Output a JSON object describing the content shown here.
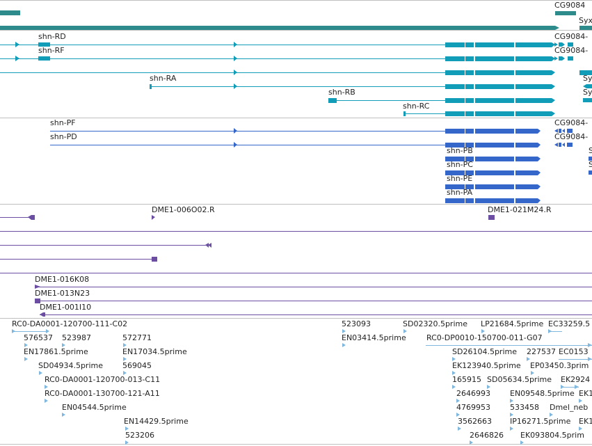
{
  "colors": {
    "gene": "#2e8b8b",
    "mrna": "#119cb8",
    "protein": "#3566c9",
    "oligo": "#6b4ea2",
    "est": "#7fb7de",
    "divider": "#bfbfbf"
  },
  "genes": {
    "cg9084_top": "CG9084",
    "syx_top": "Syx"
  },
  "mrna": {
    "shn_rd": "shn-RD",
    "shn_rf": "shn-RF",
    "shn_ra": "shn-RA",
    "shn_rb": "shn-RB",
    "shn_rc": "shn-RC",
    "cg9084_1": "CG9084-",
    "cg9084_2": "CG9084-",
    "syx_1": "Sy",
    "syx_2": "Sy"
  },
  "proteins": {
    "shn_pf": "shn-PF",
    "shn_pd": "shn-PD",
    "shn_pb": "shn-PB",
    "shn_pc": "shn-PC",
    "shn_pe": "shn-PE",
    "shn_pa": "shn-PA",
    "cg9084_p1": "CG9084-",
    "cg9084_p2": "CG9084-",
    "s1": "S",
    "s2": "S"
  },
  "oligos": {
    "o1": "DME1-006O02.R",
    "o2": "DME1-021M24.R",
    "o3": "DME1-016K08",
    "o4": "DME1-013N23",
    "o5": "DME1-001I10"
  },
  "ests": {
    "e1": "RC0-DA0001-120700-111-C02",
    "e2": "576537",
    "e3": "523987",
    "e4": "572771",
    "e5": "EN17861.5prime",
    "e6": "EN17034.5prime",
    "e7": "SD04934.5prime",
    "e8": "569045",
    "e9": "RC0-DA0001-120700-013-C11",
    "e10": "RC0-DA0001-130700-121-A11",
    "e11": "EN04544.5prime",
    "e12": "EN14429.5prime",
    "e13": "523206",
    "e14": "523093",
    "e15": "SD02320.5prime",
    "e16": "LP21684.5prime",
    "e17": "EC33259.5",
    "e18": "EN03414.5prime",
    "e19": "RC0-DP0010-150700-011-G07",
    "e20": "SD26104.5prime",
    "e21": "227537",
    "e22": "EC0153",
    "e23": "EK123940.5prime",
    "e24": "EP03450.3prim",
    "e25": "165915",
    "e26": "SD05634.5prime",
    "e27": "EK2924",
    "e28": "2646993",
    "e29": "EN09548.5prime",
    "e30": "EK1",
    "e31": "4769953",
    "e32": "533458",
    "e33": "Dmel_neb",
    "e34": "3562663",
    "e35": "IP16271.5prime",
    "e36": "EK1",
    "e37": "2646826",
    "e38": "EK093804.5prim"
  }
}
